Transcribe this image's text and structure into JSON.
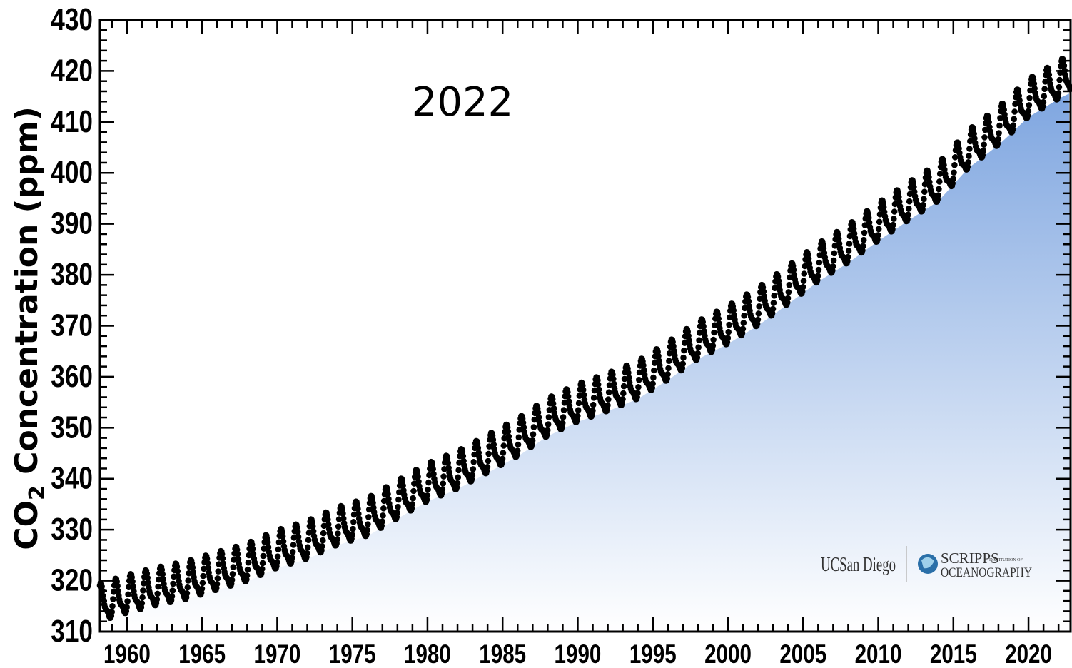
{
  "chart_data": {
    "type": "line",
    "title": "",
    "annotation": "2022",
    "ylabel_main": "CO",
    "ylabel_sub": "2",
    "ylabel_rest": " Concentration (ppm)",
    "xlim": [
      1958.2,
      2022.8
    ],
    "ylim": [
      310,
      430
    ],
    "xticks": [
      1960,
      1965,
      1970,
      1975,
      1980,
      1985,
      1990,
      1995,
      2000,
      2005,
      2010,
      2015,
      2020
    ],
    "yticks": [
      310,
      320,
      330,
      340,
      350,
      360,
      370,
      380,
      390,
      400,
      410,
      420,
      430
    ],
    "grid": false,
    "fill_color_top": "#7fa6e0",
    "fill_color_bottom": "#ffffff",
    "marker_color": "#000000",
    "series": [
      {
        "x": [
          1958,
          1960,
          1962,
          1964,
          1966,
          1968,
          1970,
          1972,
          1974,
          1976,
          1978,
          1980,
          1982,
          1984,
          1986,
          1988,
          1990,
          1992,
          1994,
          1996,
          1998,
          2000,
          2002,
          2004,
          2006,
          2008,
          2010,
          2012,
          2014,
          2016,
          2018,
          2020,
          2022.6
        ],
        "y": [
          315.0,
          316.9,
          318.4,
          319.6,
          321.4,
          323.1,
          325.7,
          327.5,
          330.2,
          332.0,
          335.4,
          338.8,
          341.2,
          344.4,
          347.6,
          351.6,
          354.4,
          356.5,
          358.9,
          362.6,
          366.7,
          369.7,
          373.3,
          377.5,
          381.9,
          385.6,
          389.9,
          393.9,
          397.7,
          404.2,
          408.7,
          414.2,
          418.8
        ]
      }
    ],
    "seasonal_amplitude_ppm": 6.5
  },
  "logos": {
    "ucsd": "UCSan Diego",
    "scripps_top": "SCRIPPS",
    "scripps_small": "INSTITUTION OF",
    "scripps_bottom": "OCEANOGRAPHY"
  }
}
